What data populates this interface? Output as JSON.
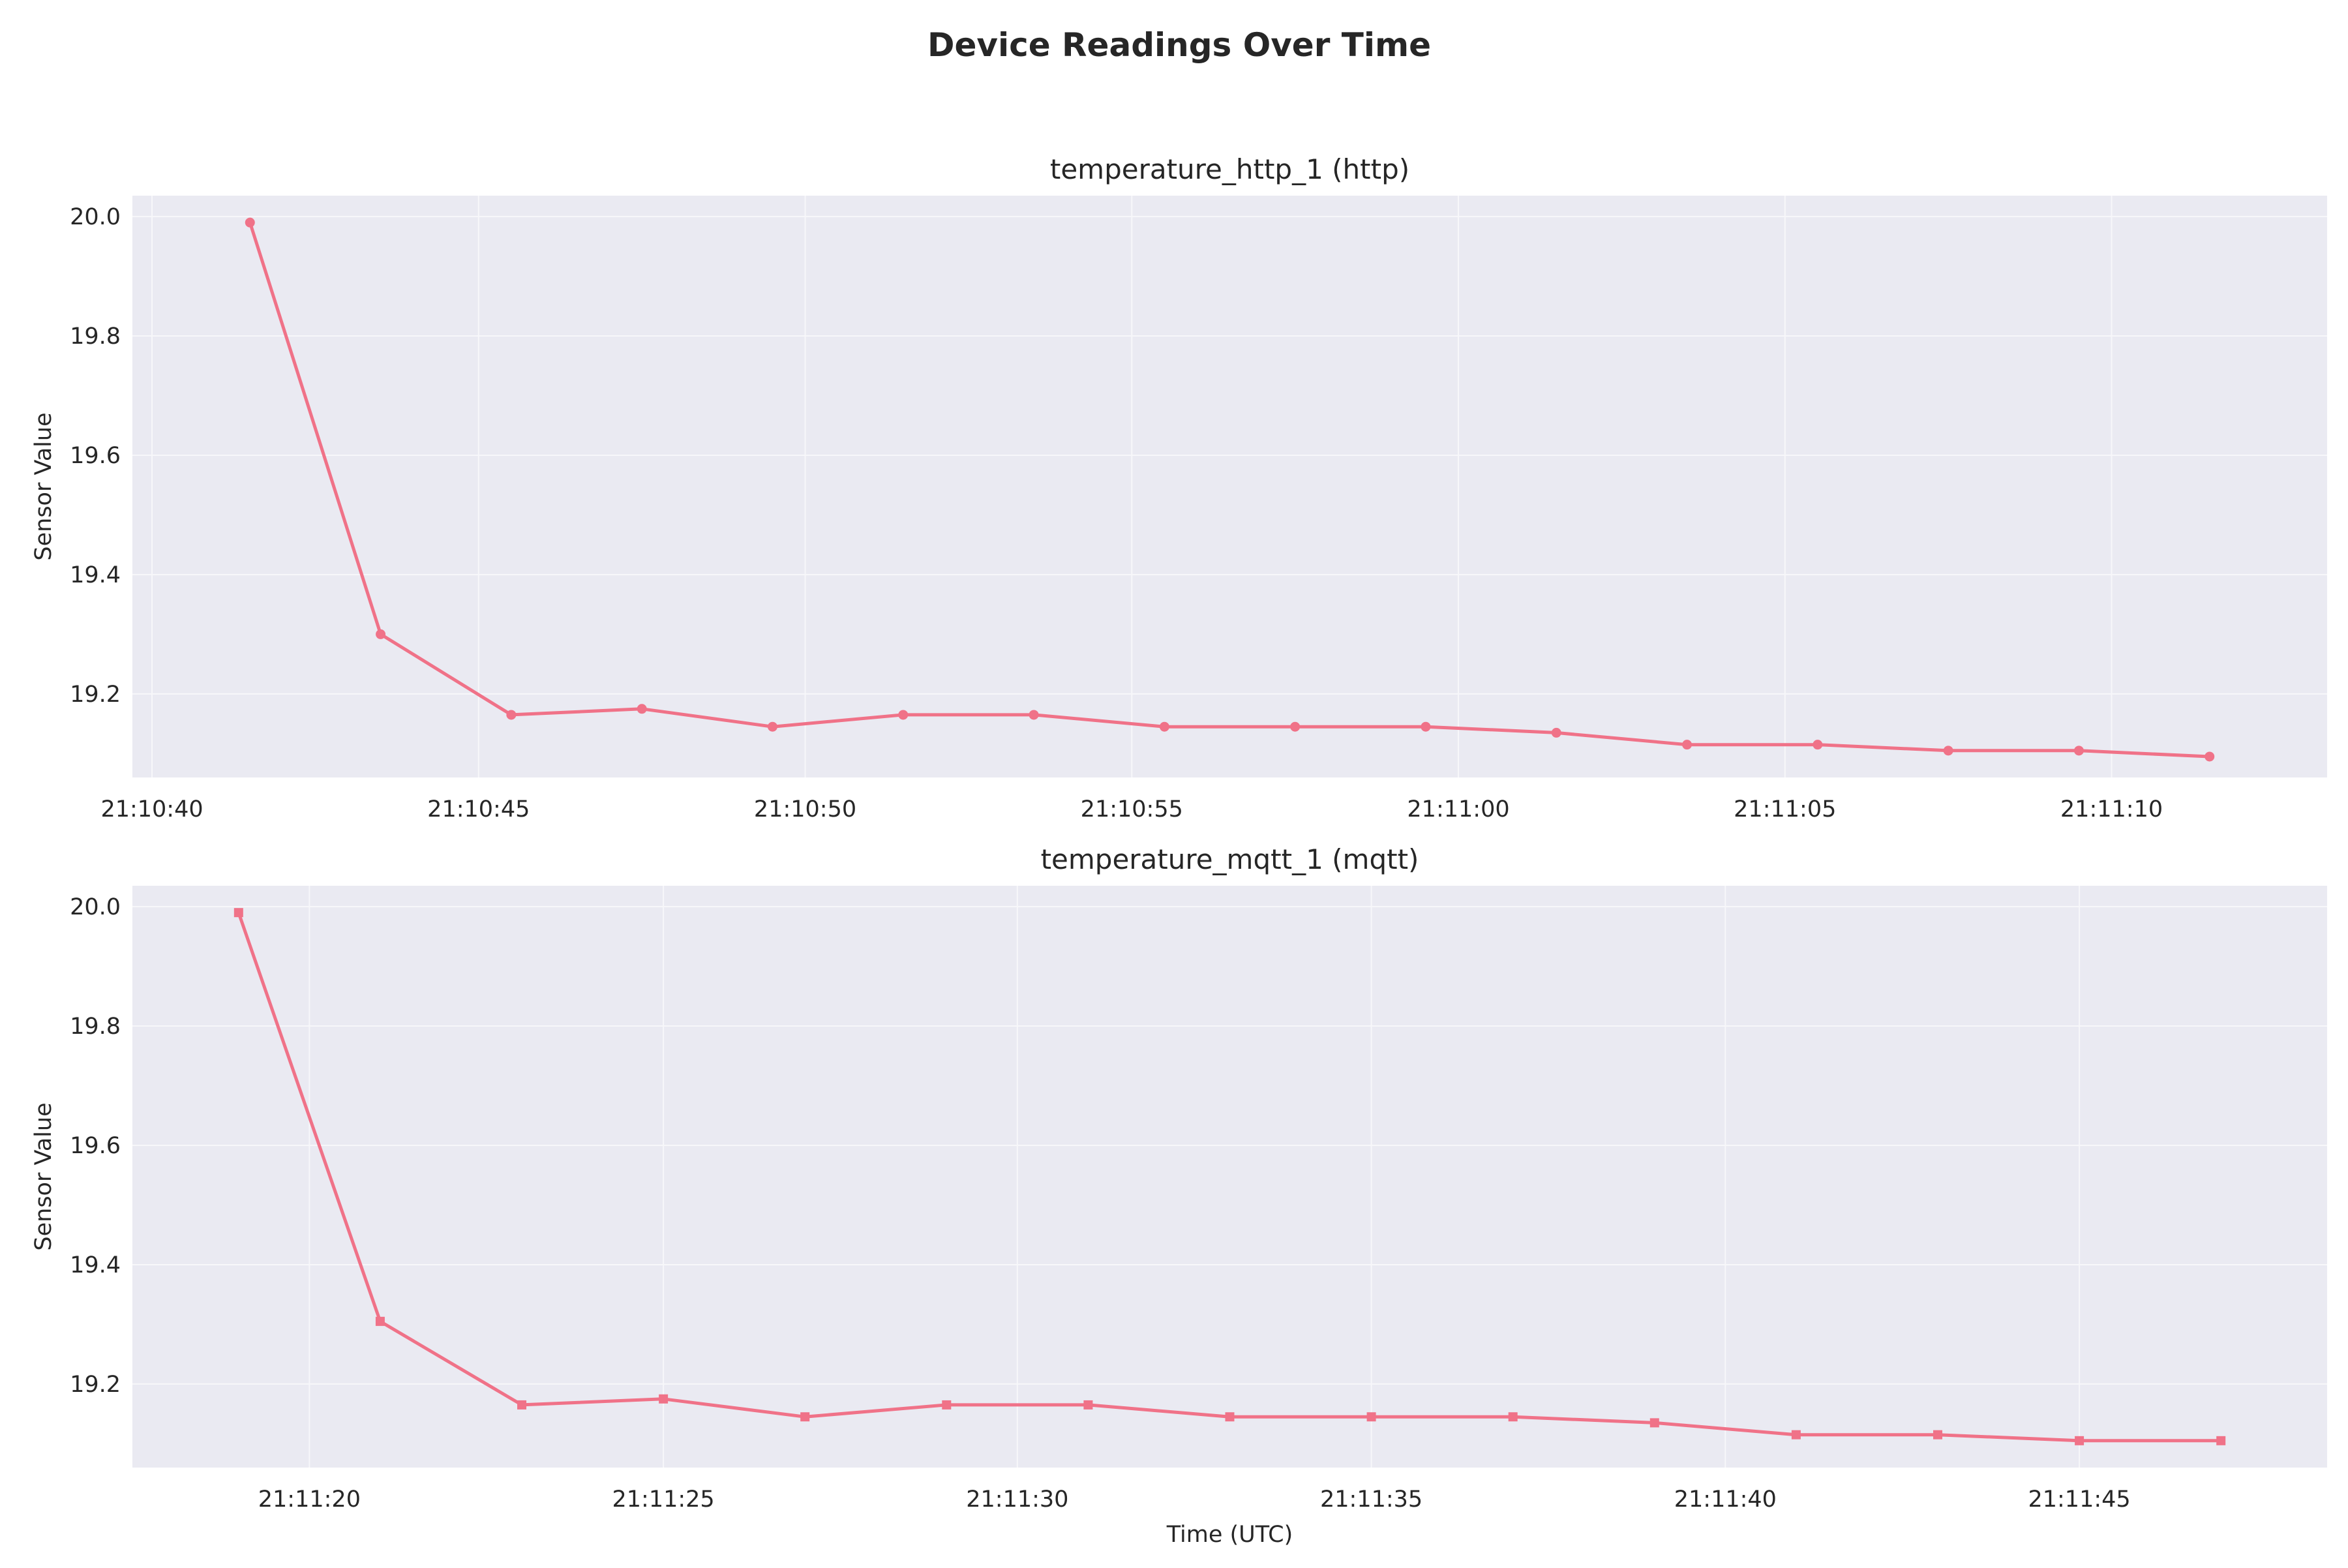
{
  "figure": {
    "title": "Device Readings Over Time",
    "colors": {
      "line": "#f07288",
      "panel_bg": "#eaeaf2",
      "grid": "#f7f7fa",
      "text": "#262626"
    }
  },
  "chart_data": [
    {
      "type": "line",
      "title": "temperature_http_1 (http)",
      "xlabel": "",
      "ylabel": "Sensor Value",
      "x": [
        "21:10:41.5",
        "21:10:43.5",
        "21:10:45.5",
        "21:10:47.5",
        "21:10:49.5",
        "21:10:51.5",
        "21:10:53.5",
        "21:10:55.5",
        "21:10:57.5",
        "21:10:59.5",
        "21:11:01.5",
        "21:11:03.5",
        "21:11:05.5",
        "21:11:07.5",
        "21:11:09.5",
        "21:11:11.5"
      ],
      "values": [
        19.99,
        19.3,
        19.165,
        19.175,
        19.145,
        19.165,
        19.165,
        19.145,
        19.145,
        19.145,
        19.135,
        19.115,
        19.115,
        19.105,
        19.105,
        19.095
      ],
      "xlim": [
        "21:10:39.7",
        "21:11:13.3"
      ],
      "ylim": [
        19.06,
        20.035
      ],
      "xticks": [
        "21:10:40",
        "21:10:45",
        "21:10:50",
        "21:10:55",
        "21:11:00",
        "21:11:05",
        "21:11:10"
      ],
      "yticks": [
        "19.2",
        "19.4",
        "19.6",
        "19.8",
        "20.0"
      ],
      "marker": "circle",
      "grid": true
    },
    {
      "type": "line",
      "title": "temperature_mqtt_1 (mqtt)",
      "xlabel": "Time (UTC)",
      "ylabel": "Sensor Value",
      "x": [
        "21:11:19",
        "21:11:21",
        "21:11:23",
        "21:11:25",
        "21:11:27",
        "21:11:29",
        "21:11:31",
        "21:11:33",
        "21:11:35",
        "21:11:37",
        "21:11:39",
        "21:11:41",
        "21:11:43",
        "21:11:45",
        "21:11:47"
      ],
      "values": [
        19.99,
        19.305,
        19.165,
        19.175,
        19.145,
        19.165,
        19.165,
        19.145,
        19.145,
        19.145,
        19.135,
        19.115,
        19.115,
        19.105,
        19.105
      ],
      "xlim": [
        "21:11:17.5",
        "21:11:48.5"
      ],
      "ylim": [
        19.06,
        20.035
      ],
      "xticks": [
        "21:11:20",
        "21:11:25",
        "21:11:30",
        "21:11:35",
        "21:11:40",
        "21:11:45"
      ],
      "yticks": [
        "19.2",
        "19.4",
        "19.6",
        "19.8",
        "20.0"
      ],
      "marker": "square",
      "grid": true
    }
  ]
}
